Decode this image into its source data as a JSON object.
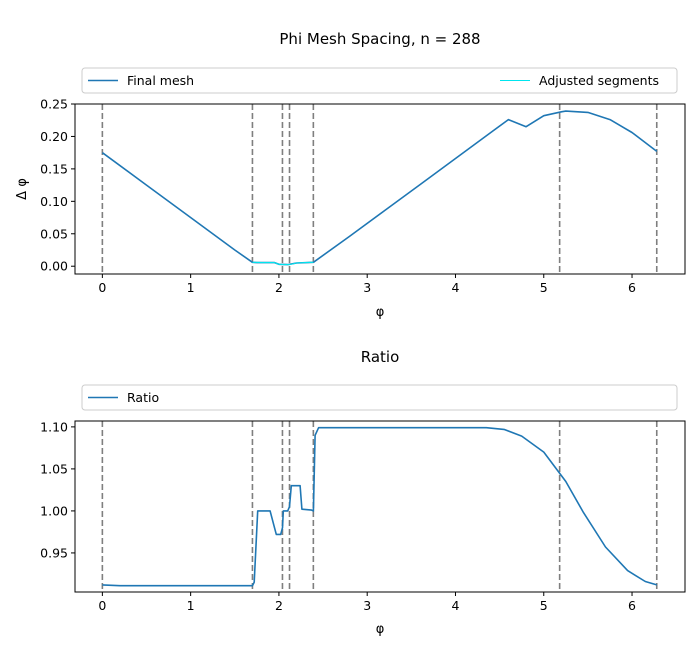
{
  "colors": {
    "final_mesh": "#1f77b4",
    "adjusted": "#00e5ee",
    "ratio": "#1f77b4",
    "vline": "#7f7f7f"
  },
  "chart_data": [
    {
      "type": "line",
      "title": "Phi Mesh Spacing, n = 288",
      "xlabel": "φ",
      "ylabel": "Δ φ",
      "xlim": [
        -0.31,
        6.6
      ],
      "ylim": [
        -0.012,
        0.25
      ],
      "xticks": [
        0,
        1,
        2,
        3,
        4,
        5,
        6
      ],
      "xtick_labels": [
        "0",
        "1",
        "2",
        "3",
        "4",
        "5",
        "6"
      ],
      "yticks": [
        0.0,
        0.05,
        0.1,
        0.15,
        0.2,
        0.25
      ],
      "ytick_labels": [
        "0.00",
        "0.05",
        "0.10",
        "0.15",
        "0.20",
        "0.25"
      ],
      "legend": {
        "placement": "top, above axes",
        "entries": [
          "Final mesh",
          "Adjusted segments"
        ]
      },
      "vlines": [
        0.0,
        1.7,
        2.04,
        2.12,
        2.39,
        5.18,
        6.28
      ],
      "series": [
        {
          "name": "Final mesh",
          "x": [
            0.0,
            0.5,
            1.0,
            1.5,
            1.7,
            1.75,
            1.95,
            2.0,
            2.1,
            2.2,
            2.39,
            2.8,
            3.2,
            3.6,
            4.0,
            4.4,
            4.6,
            4.8,
            5.0,
            5.2,
            5.25,
            5.5,
            5.75,
            6.0,
            6.28
          ],
          "y": [
            0.175,
            0.125,
            0.075,
            0.025,
            0.006,
            0.0055,
            0.0055,
            0.003,
            0.0025,
            0.005,
            0.006,
            0.046,
            0.086,
            0.126,
            0.166,
            0.206,
            0.226,
            0.215,
            0.232,
            0.238,
            0.239,
            0.237,
            0.226,
            0.206,
            0.177
          ]
        },
        {
          "name": "Adjusted segments",
          "x": [
            1.7,
            1.8,
            1.95,
            2.0,
            2.05,
            2.12,
            2.2,
            2.3,
            2.39
          ],
          "y": [
            0.006,
            0.0055,
            0.0055,
            0.003,
            0.0025,
            0.0025,
            0.005,
            0.0055,
            0.006
          ]
        }
      ]
    },
    {
      "type": "line",
      "title": "Ratio",
      "xlabel": "φ",
      "ylabel": "",
      "xlim": [
        -0.31,
        6.6
      ],
      "ylim": [
        0.9035,
        1.107
      ],
      "xticks": [
        0,
        1,
        2,
        3,
        4,
        5,
        6
      ],
      "xtick_labels": [
        "0",
        "1",
        "2",
        "3",
        "4",
        "5",
        "6"
      ],
      "yticks": [
        0.95,
        1.0,
        1.05,
        1.1
      ],
      "ytick_labels": [
        "0.95",
        "1.00",
        "1.05",
        "1.10"
      ],
      "legend": {
        "placement": "top, above axes",
        "entries": [
          "Ratio"
        ]
      },
      "vlines": [
        0.0,
        1.7,
        2.04,
        2.12,
        2.39,
        5.18,
        6.28
      ],
      "series": [
        {
          "name": "Ratio",
          "x": [
            0.0,
            0.2,
            1.0,
            1.7,
            1.72,
            1.76,
            1.8,
            1.9,
            1.95,
            1.97,
            2.02,
            2.04,
            2.05,
            2.1,
            2.12,
            2.14,
            2.24,
            2.26,
            2.37,
            2.39,
            2.41,
            2.45,
            3.0,
            4.0,
            4.35,
            4.55,
            4.75,
            5.0,
            5.25,
            5.45,
            5.7,
            5.95,
            6.15,
            6.28
          ],
          "y": [
            0.912,
            0.911,
            0.911,
            0.911,
            0.915,
            1.0,
            1.0,
            1.0,
            0.98,
            0.972,
            0.972,
            0.98,
            1.0,
            1.0,
            1.005,
            1.03,
            1.03,
            1.002,
            1.001,
            1.0,
            1.09,
            1.099,
            1.099,
            1.099,
            1.099,
            1.097,
            1.089,
            1.07,
            1.035,
            0.998,
            0.957,
            0.929,
            0.916,
            0.912
          ]
        }
      ]
    }
  ]
}
